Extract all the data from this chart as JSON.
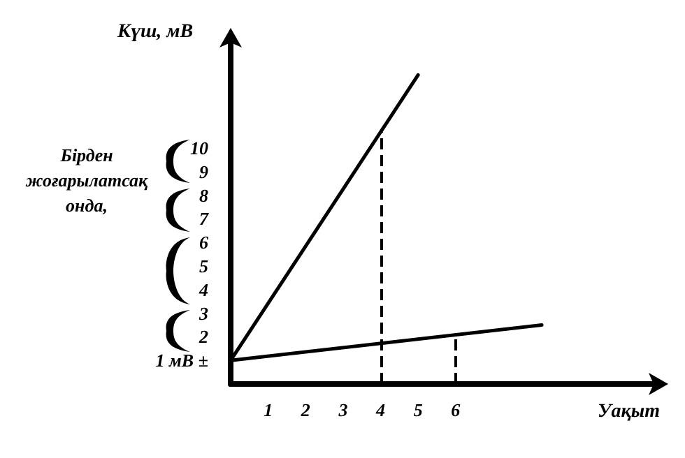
{
  "chart_data": {
    "type": "line",
    "xlabel": "Уақыт",
    "ylabel": "Күш, мВ",
    "annotations": [
      "Бірден жоғарылатсақ онда,"
    ],
    "series": [
      {
        "color": "#000000",
        "x": [
          0,
          5
        ],
        "values": [
          1,
          13.1
        ]
      },
      {
        "color": "#000000",
        "x": [
          0,
          8.3
        ],
        "values": [
          1,
          2.5
        ]
      }
    ],
    "xlim": [
      0,
      11.3
    ],
    "xticks": [
      1,
      2,
      3,
      4,
      5,
      6
    ],
    "ylim": [
      0,
      14.5
    ],
    "yticks": [
      {
        "value": 1,
        "label": "1 мВ ±"
      },
      2,
      3,
      4,
      5,
      6,
      7,
      8,
      9,
      10
    ],
    "ref_lines": [
      {
        "axis": "x",
        "value": 4,
        "color": "#000000",
        "line_style": "dashed"
      },
      {
        "axis": "x",
        "value": 6,
        "color": "#000000",
        "line_style": "dashed"
      }
    ],
    "marker": "none",
    "line_style": "solid"
  }
}
